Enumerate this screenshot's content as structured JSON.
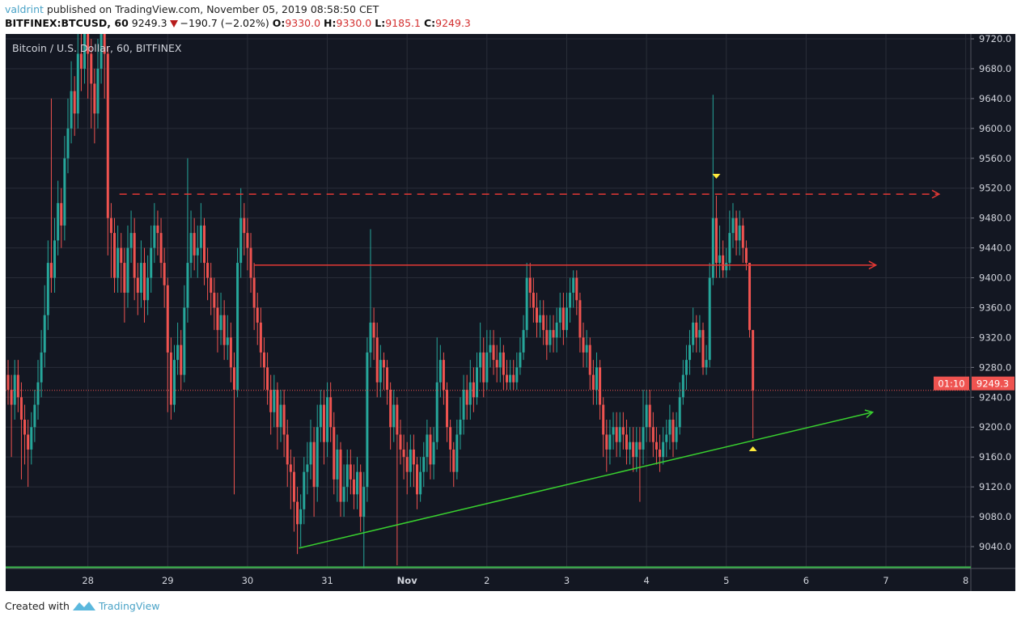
{
  "header": {
    "user": "valdrint",
    "published": "published on TradingView.com, November 05, 2019 08:58:50 CET",
    "symbol": "BITFINEX:BTCUSD, 60",
    "last": "9249.3",
    "change": "−190.7 (−2.02%)",
    "o_label": "O:",
    "o_value": "9330.0",
    "h_label": "H:",
    "h_value": "9330.0",
    "l_label": "L:",
    "l_value": "9185.1",
    "c_label": "C:",
    "c_value": "9249.3",
    "change_direction": "down"
  },
  "legend": "Bitcoin / U.S. Dollar, 60, BITFINEX",
  "footer": {
    "created_with": "Created with",
    "brand": "TradingView",
    "logo_icon": "tradingview-logo-icon"
  },
  "chart_data": {
    "type": "candlestick",
    "interval_minutes": 60,
    "start": "2019-10-27T00:00",
    "colors": {
      "up": "#26a69a",
      "down": "#ef5350",
      "background": "#131722",
      "grid": "#2a2e39"
    },
    "ylim": [
      9005,
      9735
    ],
    "y_ticks": [
      "9040.0",
      "9080.0",
      "9120.0",
      "9160.0",
      "9200.0",
      "9240.0",
      "9280.0",
      "9320.0",
      "9360.0",
      "9400.0",
      "9440.0",
      "9480.0",
      "9520.0",
      "9560.0",
      "9600.0",
      "9640.0",
      "9680.0",
      "9720.0"
    ],
    "x_ticks": [
      {
        "label": "28",
        "date": "2019-10-28T00:00"
      },
      {
        "label": "29",
        "date": "2019-10-29T00:00"
      },
      {
        "label": "30",
        "date": "2019-10-30T00:00"
      },
      {
        "label": "31",
        "date": "2019-10-31T00:00"
      },
      {
        "label": "Nov",
        "date": "2019-11-01T00:00",
        "bold": true
      },
      {
        "label": "2",
        "date": "2019-11-02T00:00"
      },
      {
        "label": "3",
        "date": "2019-11-03T00:00"
      },
      {
        "label": "4",
        "date": "2019-11-04T00:00"
      },
      {
        "label": "5",
        "date": "2019-11-05T00:00"
      },
      {
        "label": "6",
        "date": "2019-11-06T00:00"
      },
      {
        "label": "7",
        "date": "2019-11-07T00:00"
      },
      {
        "label": "8",
        "date": "2019-11-08T00:00"
      }
    ],
    "first_open": 9270,
    "close": [
      9250,
      9230,
      9270,
      9240,
      9210,
      9190,
      9170,
      9200,
      9230,
      9260,
      9300,
      9350,
      9420,
      9400,
      9450,
      9500,
      9470,
      9560,
      9600,
      9650,
      9620,
      9700,
      9680,
      9730,
      9700,
      9660,
      9620,
      9680,
      9740,
      9700,
      9480,
      9460,
      9400,
      9440,
      9420,
      9380,
      9440,
      9460,
      9400,
      9380,
      9420,
      9370,
      9400,
      9440,
      9470,
      9460,
      9420,
      9390,
      9300,
      9230,
      9290,
      9310,
      9270,
      9360,
      9420,
      9460,
      9430,
      9440,
      9470,
      9420,
      9400,
      9380,
      9360,
      9330,
      9350,
      9310,
      9320,
      9280,
      9250,
      9420,
      9480,
      9460,
      9440,
      9400,
      9360,
      9340,
      9300,
      9280,
      9250,
      9220,
      9250,
      9200,
      9230,
      9190,
      9150,
      9140,
      9100,
      9070,
      9090,
      9140,
      9150,
      9180,
      9120,
      9200,
      9230,
      9180,
      9240,
      9200,
      9130,
      9170,
      9100,
      9120,
      9150,
      9130,
      9110,
      9140,
      9080,
      9120,
      9300,
      9340,
      9320,
      9260,
      9290,
      9280,
      9250,
      9200,
      9230,
      9190,
      9170,
      9160,
      9140,
      9170,
      9150,
      9110,
      9140,
      9160,
      9190,
      9150,
      9180,
      9260,
      9290,
      9250,
      9200,
      9170,
      9140,
      9190,
      9210,
      9250,
      9230,
      9260,
      9240,
      9280,
      9300,
      9260,
      9300,
      9310,
      9290,
      9280,
      9300,
      9270,
      9260,
      9270,
      9260,
      9280,
      9300,
      9330,
      9400,
      9380,
      9360,
      9340,
      9350,
      9330,
      9310,
      9330,
      9320,
      9340,
      9360,
      9330,
      9360,
      9380,
      9400,
      9370,
      9320,
      9300,
      9310,
      9270,
      9250,
      9280,
      9230,
      9190,
      9170,
      9190,
      9200,
      9180,
      9200,
      9190,
      9170,
      9180,
      9160,
      9180,
      9170,
      9200,
      9230,
      9200,
      9180,
      9170,
      9160,
      9180,
      9190,
      9210,
      9180,
      9200,
      9240,
      9270,
      9290,
      9310,
      9340,
      9320,
      9330,
      9280,
      9290,
      9400,
      9480,
      9420,
      9430,
      9410,
      9420,
      9460,
      9480,
      9450,
      9470,
      9440,
      9420,
      9330,
      9249.3
    ],
    "high": [
      9290,
      9270,
      9290,
      9290,
      9260,
      9230,
      9210,
      9220,
      9250,
      9290,
      9330,
      9390,
      9450,
      9640,
      9480,
      9530,
      9520,
      9590,
      9640,
      9690,
      9670,
      9740,
      9730,
      9760,
      9760,
      9720,
      9680,
      9720,
      9770,
      9760,
      9710,
      9500,
      9480,
      9470,
      9460,
      9440,
      9470,
      9490,
      9480,
      9420,
      9450,
      9440,
      9430,
      9470,
      9500,
      9490,
      9480,
      9440,
      9400,
      9320,
      9310,
      9340,
      9330,
      9390,
      9560,
      9490,
      9480,
      9470,
      9500,
      9480,
      9440,
      9420,
      9400,
      9380,
      9380,
      9370,
      9350,
      9340,
      9300,
      9440,
      9520,
      9500,
      9480,
      9460,
      9420,
      9380,
      9360,
      9320,
      9300,
      9270,
      9270,
      9260,
      9250,
      9250,
      9210,
      9170,
      9160,
      9120,
      9110,
      9160,
      9180,
      9210,
      9200,
      9230,
      9250,
      9250,
      9260,
      9260,
      9220,
      9190,
      9180,
      9150,
      9170,
      9170,
      9150,
      9160,
      9150,
      9140,
      9320,
      9465,
      9360,
      9340,
      9310,
      9300,
      9290,
      9260,
      9250,
      9240,
      9210,
      9190,
      9180,
      9190,
      9190,
      9160,
      9160,
      9180,
      9210,
      9200,
      9200,
      9320,
      9310,
      9300,
      9260,
      9210,
      9180,
      9210,
      9240,
      9270,
      9270,
      9290,
      9280,
      9300,
      9340,
      9320,
      9330,
      9330,
      9330,
      9310,
      9320,
      9310,
      9290,
      9290,
      9290,
      9300,
      9320,
      9350,
      9420,
      9420,
      9400,
      9380,
      9370,
      9370,
      9350,
      9350,
      9350,
      9360,
      9380,
      9380,
      9380,
      9400,
      9410,
      9410,
      9380,
      9340,
      9330,
      9320,
      9290,
      9300,
      9290,
      9240,
      9210,
      9210,
      9220,
      9220,
      9220,
      9220,
      9210,
      9200,
      9200,
      9200,
      9200,
      9250,
      9250,
      9250,
      9220,
      9200,
      9190,
      9200,
      9210,
      9230,
      9220,
      9220,
      9260,
      9290,
      9310,
      9330,
      9360,
      9350,
      9350,
      9340,
      9310,
      9420,
      9645,
      9510,
      9470,
      9450,
      9440,
      9490,
      9500,
      9490,
      9490,
      9480,
      9450,
      9420,
      9330
    ],
    "low": [
      9230,
      9160,
      9210,
      9220,
      9130,
      9150,
      9120,
      9150,
      9180,
      9210,
      9240,
      9280,
      9330,
      9380,
      9380,
      9430,
      9440,
      9450,
      9540,
      9580,
      9590,
      9600,
      9650,
      9660,
      9640,
      9600,
      9580,
      9600,
      9660,
      9640,
      9430,
      9400,
      9380,
      9380,
      9380,
      9340,
      9360,
      9420,
      9370,
      9350,
      9360,
      9340,
      9350,
      9380,
      9420,
      9430,
      9400,
      9360,
      9220,
      9210,
      9220,
      9270,
      9250,
      9260,
      9340,
      9400,
      9410,
      9400,
      9420,
      9390,
      9370,
      9350,
      9330,
      9300,
      9310,
      9290,
      9290,
      9260,
      9110,
      9240,
      9400,
      9430,
      9410,
      9380,
      9330,
      9310,
      9280,
      9250,
      9230,
      9190,
      9200,
      9170,
      9180,
      9160,
      9120,
      9090,
      9060,
      9030,
      9040,
      9070,
      9110,
      9130,
      9080,
      9100,
      9180,
      9150,
      9160,
      9180,
      9110,
      9100,
      9080,
      9080,
      9100,
      9110,
      9090,
      9090,
      9060,
      9010,
      9100,
      9280,
      9290,
      9240,
      9240,
      9250,
      9230,
      9170,
      9180,
      9015,
      9150,
      9130,
      9110,
      9120,
      9120,
      9090,
      9100,
      9120,
      9140,
      9130,
      9130,
      9170,
      9240,
      9230,
      9180,
      9140,
      9120,
      9130,
      9170,
      9190,
      9210,
      9210,
      9220,
      9230,
      9260,
      9240,
      9250,
      9280,
      9270,
      9260,
      9260,
      9250,
      9250,
      9250,
      9250,
      9250,
      9270,
      9290,
      9320,
      9360,
      9340,
      9320,
      9320,
      9310,
      9290,
      9300,
      9300,
      9300,
      9320,
      9310,
      9320,
      9340,
      9360,
      9350,
      9300,
      9280,
      9280,
      9250,
      9230,
      9230,
      9210,
      9160,
      9140,
      9150,
      9170,
      9160,
      9160,
      9170,
      9150,
      9150,
      9140,
      9140,
      9100,
      9150,
      9180,
      9180,
      9160,
      9150,
      9140,
      9150,
      9160,
      9170,
      9160,
      9170,
      9190,
      9230,
      9250,
      9270,
      9300,
      9300,
      9300,
      9270,
      9270,
      9280,
      9390,
      9400,
      9400,
      9400,
      9400,
      9410,
      9440,
      9430,
      9430,
      9420,
      9410,
      9320,
      9185.1
    ],
    "last_price": {
      "value": 9249.3,
      "label": "9249.3",
      "countdown": "01:10",
      "color": "#ef5350"
    },
    "drawings": [
      {
        "type": "horizontal-ray-dashed",
        "color": "#e53935",
        "price": 9512,
        "from": "2019-10-28T09:30",
        "to": "2019-11-07T16:00"
      },
      {
        "type": "horizontal-ray",
        "color": "#e53935",
        "price": 9417,
        "from": "2019-10-30T02:00",
        "to": "2019-11-06T21:00"
      },
      {
        "type": "trend-arrow",
        "color": "#39d12f",
        "from": {
          "date": "2019-10-30T15:30",
          "price": 9038
        },
        "to": {
          "date": "2019-11-06T20:00",
          "price": 9220
        }
      },
      {
        "type": "horizontal-line",
        "color": "#39b54a",
        "price": 9011
      },
      {
        "type": "marker-down",
        "color": "#ffeb3b",
        "date": "2019-11-04T21:00",
        "price": 9536
      },
      {
        "type": "marker-up",
        "color": "#ffeb3b",
        "date": "2019-11-05T08:00",
        "price": 9171
      }
    ]
  }
}
